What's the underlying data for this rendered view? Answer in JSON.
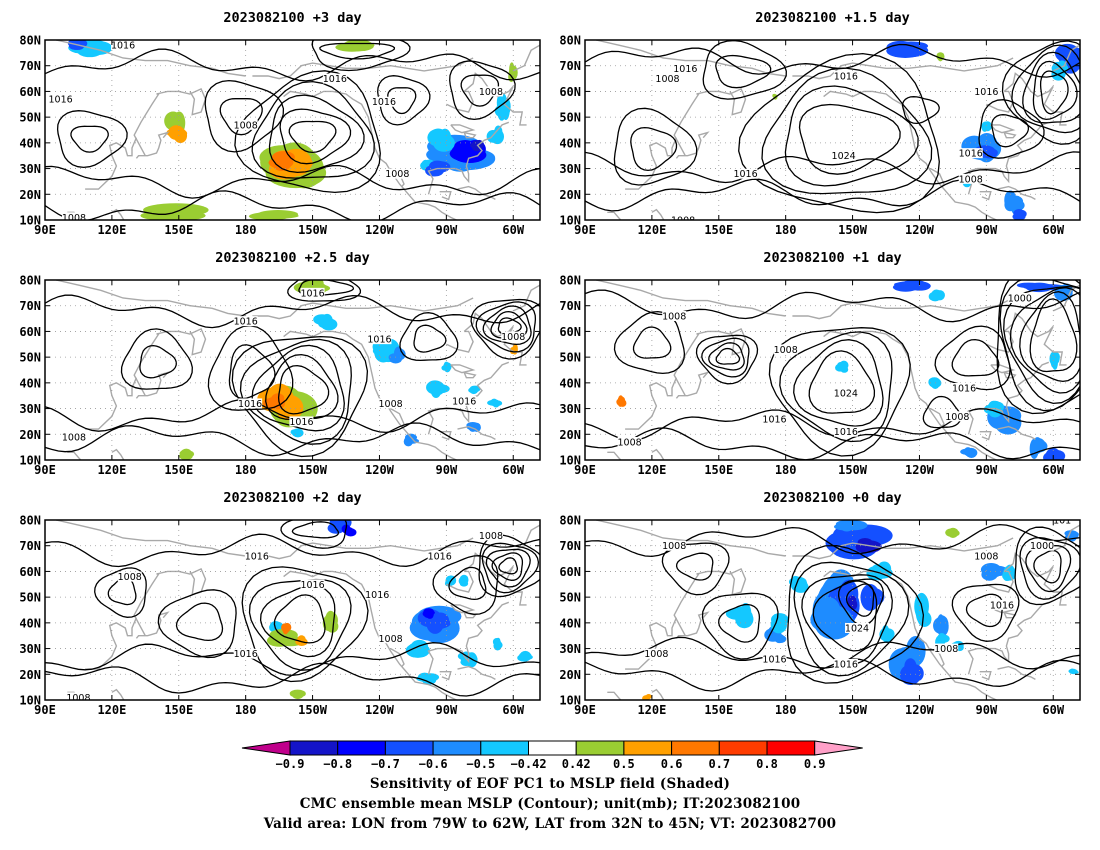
{
  "figure": {
    "panels": [
      {
        "title": "2023082100 +3 day"
      },
      {
        "title": "2023082100 +1.5 day"
      },
      {
        "title": "2023082100 +2.5 day"
      },
      {
        "title": "2023082100 +1 day"
      },
      {
        "title": "2023082100 +2 day"
      },
      {
        "title": "2023082100 +0 day"
      }
    ],
    "lat_labels": [
      "80N",
      "70N",
      "60N",
      "50N",
      "40N",
      "30N",
      "20N",
      "10N"
    ],
    "lon_labels": [
      "90E",
      "120E",
      "150E",
      "180",
      "150W",
      "120W",
      "90W",
      "60W"
    ],
    "contour_labels": {
      "p0": [
        {
          "text": "1016",
          "lon": 125,
          "lat": 78
        },
        {
          "text": "1016",
          "lon": 220,
          "lat": 65
        },
        {
          "text": "1016",
          "lon": 97,
          "lat": 57
        },
        {
          "text": "1008",
          "lon": 180,
          "lat": 47
        },
        {
          "text": "1016",
          "lon": 242,
          "lat": 56
        },
        {
          "text": "1008",
          "lon": 290,
          "lat": 60
        },
        {
          "text": "1008",
          "lon": 248,
          "lat": 28
        },
        {
          "text": "1008",
          "lon": 103,
          "lat": 11
        }
      ],
      "p1": [
        {
          "text": "1016",
          "lon": 135,
          "lat": 69
        },
        {
          "text": "1008",
          "lon": 127,
          "lat": 65
        },
        {
          "text": "1016",
          "lon": 207,
          "lat": 66
        },
        {
          "text": "1016",
          "lon": 270,
          "lat": 60
        },
        {
          "text": "1024",
          "lon": 206,
          "lat": 35
        },
        {
          "text": "1016",
          "lon": 162,
          "lat": 28
        },
        {
          "text": "1016",
          "lon": 263,
          "lat": 36
        },
        {
          "text": "1008",
          "lon": 263,
          "lat": 26
        },
        {
          "text": "1008",
          "lon": 134,
          "lat": 10
        }
      ],
      "p2": [
        {
          "text": "1016",
          "lon": 210,
          "lat": 75
        },
        {
          "text": "1016",
          "lon": 180,
          "lat": 64
        },
        {
          "text": "1016",
          "lon": 240,
          "lat": 57
        },
        {
          "text": "1008",
          "lon": 300,
          "lat": 58
        },
        {
          "text": "1016",
          "lon": 182,
          "lat": 32
        },
        {
          "text": "1016",
          "lon": 205,
          "lat": 25
        },
        {
          "text": "1008",
          "lon": 245,
          "lat": 32
        },
        {
          "text": "1016",
          "lon": 278,
          "lat": 33
        },
        {
          "text": "1008",
          "lon": 103,
          "lat": 19
        }
      ],
      "p3": [
        {
          "text": "1008",
          "lon": 130,
          "lat": 66
        },
        {
          "text": "1008",
          "lon": 180,
          "lat": 53
        },
        {
          "text": "1000",
          "lon": 285,
          "lat": 73
        },
        {
          "text": "1024",
          "lon": 207,
          "lat": 36
        },
        {
          "text": "1016",
          "lon": 175,
          "lat": 26
        },
        {
          "text": "1016",
          "lon": 207,
          "lat": 21
        },
        {
          "text": "1016",
          "lon": 260,
          "lat": 38
        },
        {
          "text": "1008",
          "lon": 257,
          "lat": 27
        },
        {
          "text": "1008",
          "lon": 110,
          "lat": 17
        }
      ],
      "p4": [
        {
          "text": "1016",
          "lon": 185,
          "lat": 66
        },
        {
          "text": "1008",
          "lon": 128,
          "lat": 58
        },
        {
          "text": "1016",
          "lon": 210,
          "lat": 55
        },
        {
          "text": "1016",
          "lon": 239,
          "lat": 51
        },
        {
          "text": "1008",
          "lon": 290,
          "lat": 74
        },
        {
          "text": "1016",
          "lon": 267,
          "lat": 66
        },
        {
          "text": "1016",
          "lon": 180,
          "lat": 28
        },
        {
          "text": "1008",
          "lon": 245,
          "lat": 34
        },
        {
          "text": "1008",
          "lon": 105,
          "lat": 11
        }
      ],
      "p5": [
        {
          "text": "1008",
          "lon": 130,
          "lat": 70
        },
        {
          "text": "1008",
          "lon": 270,
          "lat": 66
        },
        {
          "text": "1000",
          "lon": 295,
          "lat": 70
        },
        {
          "text": "1016",
          "lon": 277,
          "lat": 47
        },
        {
          "text": "1024",
          "lon": 212,
          "lat": 38
        },
        {
          "text": "1008",
          "lon": 122,
          "lat": 28
        },
        {
          "text": "1016",
          "lon": 175,
          "lat": 26
        },
        {
          "text": "1016",
          "lon": 207,
          "lat": 24
        },
        {
          "text": "1008",
          "lon": 252,
          "lat": 30
        },
        {
          "text": "101",
          "lon": 304,
          "lat": 80
        }
      ]
    },
    "colorbar": {
      "tick_labels": [
        "−0.9",
        "−0.8",
        "−0.7",
        "−0.6",
        "−0.5",
        "−0.42",
        "0.42",
        "0.5",
        "0.6",
        "0.7",
        "0.8",
        "0.9"
      ],
      "colors": [
        "#c0008b",
        "#1414c8",
        "#0000ff",
        "#1450ff",
        "#1e8cff",
        "#14c8ff",
        "#ffffff",
        "#9acd32",
        "#ffa000",
        "#ff7800",
        "#ff3c00",
        "#ff0000",
        "#ffa0c8"
      ]
    },
    "caption_lines": [
      "Sensitivity of EOF PC1 to MSLP field (Shaded)",
      "CMC ensemble mean MSLP (Contour); unit(mb); IT:2023082100",
      "Valid area: LON from 79W to 62W, LAT from 32N to 45N; VT: 2023082700"
    ]
  }
}
